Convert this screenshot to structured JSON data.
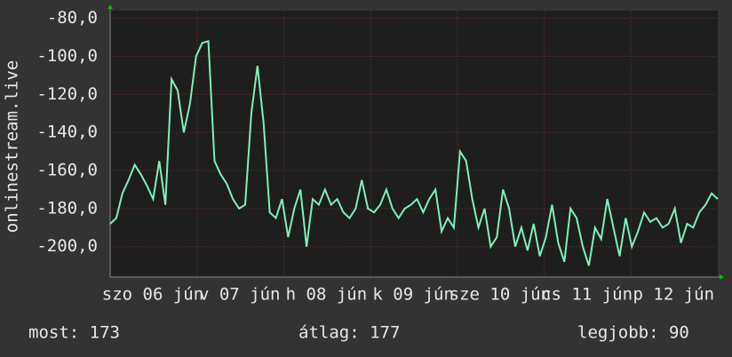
{
  "chart_data": {
    "type": "line",
    "y_label": "onlinestream.live",
    "xlim": [
      0,
      7
    ],
    "xticks": [
      {
        "value": 0,
        "label": "szo 06 jún"
      },
      {
        "value": 1,
        "label": "v 07 jún"
      },
      {
        "value": 2,
        "label": "h 08 jún"
      },
      {
        "value": 3,
        "label": "k 09 jún"
      },
      {
        "value": 4,
        "label": "sze 10 jún"
      },
      {
        "value": 5,
        "label": "cs 11 jún"
      },
      {
        "value": 6,
        "label": "p 12 jún"
      }
    ],
    "ylim": [
      -216,
      -76
    ],
    "yticks": [
      {
        "value": -80,
        "label": "-80,0"
      },
      {
        "value": -100,
        "label": "-100,0"
      },
      {
        "value": -120,
        "label": "-120,0"
      },
      {
        "value": -140,
        "label": "-140,0"
      },
      {
        "value": -160,
        "label": "-160,0"
      },
      {
        "value": -180,
        "label": "-180,0"
      },
      {
        "value": -200,
        "label": "-200,0"
      }
    ],
    "grid": true,
    "series": [
      {
        "name": "onlinestream.live",
        "color": "#80f0b8",
        "values": [
          -188,
          -185,
          -172,
          -165,
          -157,
          -162,
          -168,
          -175,
          -155,
          -178,
          -112,
          -118,
          -140,
          -125,
          -100,
          -93,
          -92,
          -155,
          -162,
          -167,
          -175,
          -180,
          -178,
          -130,
          -105,
          -135,
          -182,
          -185,
          -175,
          -195,
          -180,
          -170,
          -200,
          -175,
          -178,
          -170,
          -178,
          -175,
          -182,
          -185,
          -180,
          -165,
          -180,
          -182,
          -178,
          -170,
          -180,
          -185,
          -180,
          -178,
          -175,
          -182,
          -175,
          -170,
          -192,
          -185,
          -190,
          -150,
          -155,
          -175,
          -190,
          -180,
          -200,
          -195,
          -170,
          -180,
          -200,
          -190,
          -202,
          -188,
          -205,
          -195,
          -178,
          -198,
          -208,
          -180,
          -185,
          -200,
          -210,
          -190,
          -196,
          -175,
          -190,
          -205,
          -185,
          -200,
          -192,
          -182,
          -187,
          -185,
          -190,
          -188,
          -180,
          -198,
          -188,
          -190,
          -182,
          -178,
          -172,
          -175
        ]
      }
    ]
  },
  "footer": {
    "current": "most: 173",
    "average": "átlag: 177",
    "best": "legjobb: 90"
  }
}
